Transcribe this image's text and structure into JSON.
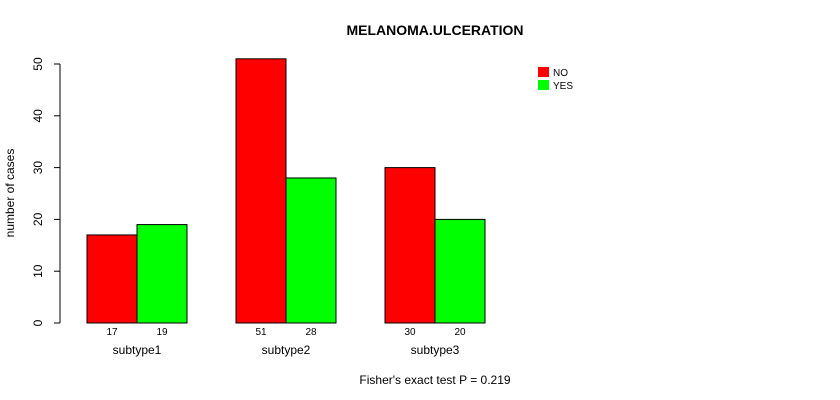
{
  "chart_data": {
    "type": "bar",
    "title": "MELANOMA.ULCERATION",
    "ylabel": "number of cases",
    "xlabel": "",
    "categories": [
      "subtype1",
      "subtype2",
      "subtype3"
    ],
    "series": [
      {
        "name": "NO",
        "color": "#ff0000",
        "values": [
          17,
          51,
          30
        ]
      },
      {
        "name": "YES",
        "color": "#00ff00",
        "values": [
          19,
          28,
          20
        ]
      }
    ],
    "ylim": [
      0,
      50
    ],
    "yticks": [
      0,
      10,
      20,
      30,
      40,
      50
    ],
    "legend_position": "top-right",
    "grid": false,
    "footnote": "Fisher's exact test P = 0.219"
  }
}
